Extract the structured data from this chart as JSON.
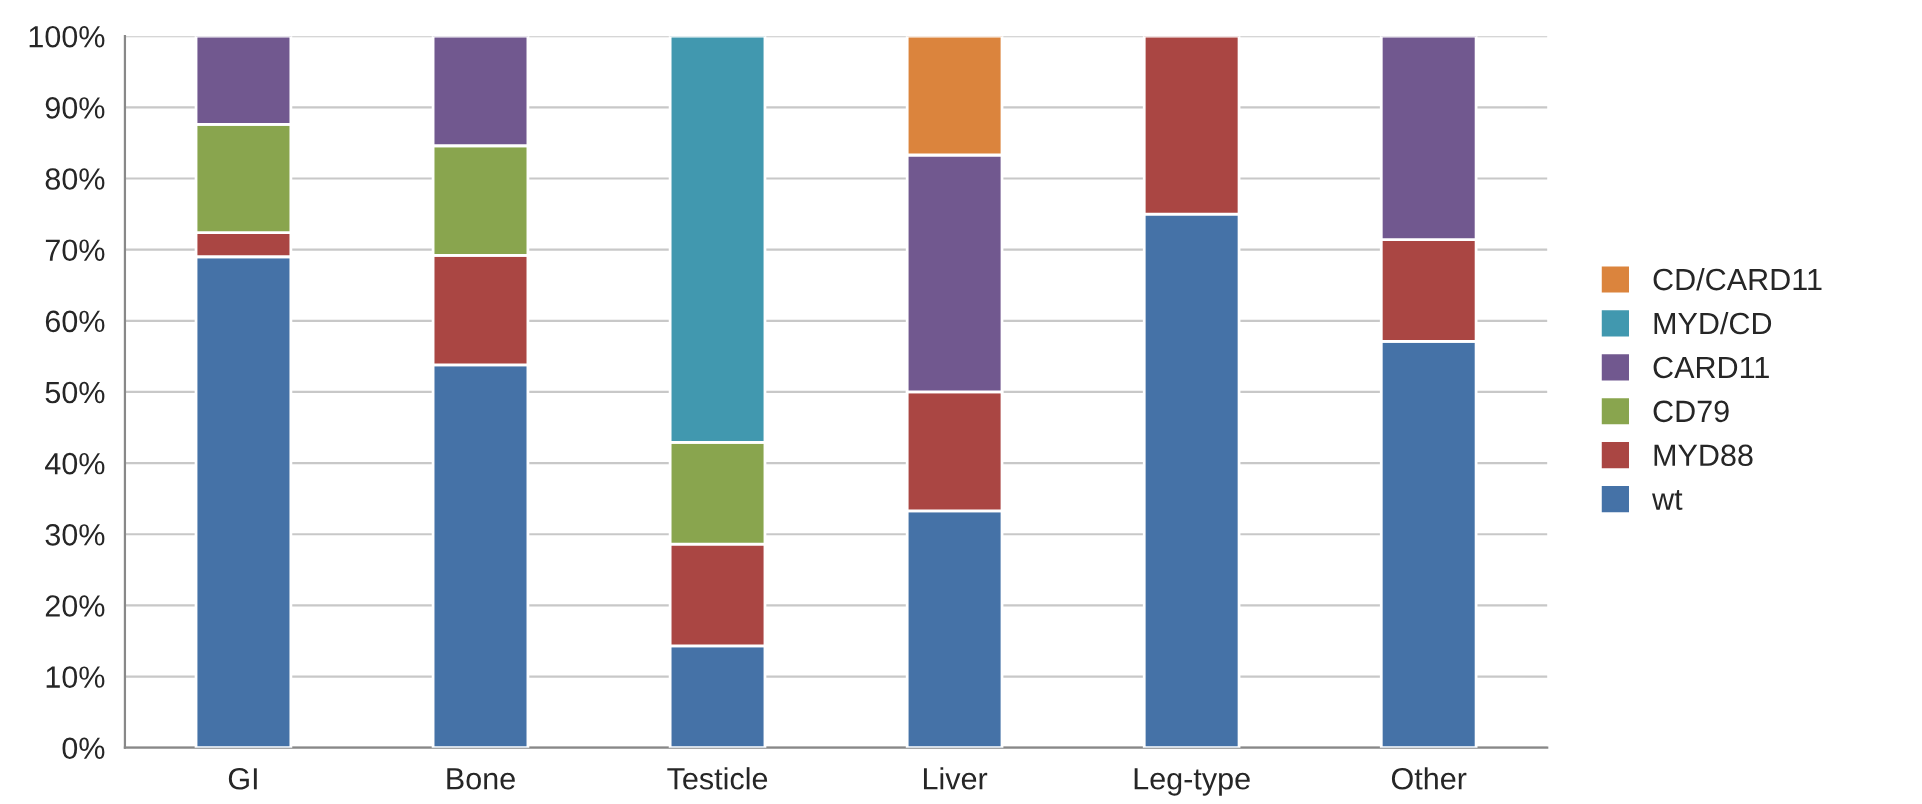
{
  "chart_data": {
    "type": "bar",
    "stacked": true,
    "categories": [
      "GI",
      "Bone",
      "Testicle",
      "Liver",
      "Leg-type",
      "Other"
    ],
    "series": [
      {
        "name": "wt",
        "color": "#4572a7",
        "values": [
          69,
          53.8,
          14.3,
          33.3,
          75,
          57.1
        ]
      },
      {
        "name": "MYD88",
        "color": "#aa4643",
        "values": [
          3.4,
          15.4,
          14.3,
          16.7,
          25,
          14.3
        ]
      },
      {
        "name": "CD79",
        "color": "#89a54e",
        "values": [
          15.2,
          15.4,
          14.3,
          null,
          null,
          null
        ]
      },
      {
        "name": "CARD11",
        "color": "#71588f",
        "values": [
          12.4,
          15.4,
          null,
          33.3,
          null,
          28.6
        ]
      },
      {
        "name": "MYD/CD",
        "color": "#4198af",
        "values": [
          null,
          null,
          57.1,
          null,
          null,
          null
        ]
      },
      {
        "name": "CD/CARD11",
        "color": "#db843d",
        "values": [
          null,
          null,
          null,
          16.7,
          null,
          null
        ]
      }
    ],
    "ylim": [
      0,
      100
    ],
    "yticks": [
      {
        "value": 0,
        "label": "0%"
      },
      {
        "value": 10,
        "label": "10%"
      },
      {
        "value": 20,
        "label": "20%"
      },
      {
        "value": 30,
        "label": "30%"
      },
      {
        "value": 40,
        "label": "40%"
      },
      {
        "value": 50,
        "label": "50%"
      },
      {
        "value": 60,
        "label": "60%"
      },
      {
        "value": 70,
        "label": "70%"
      },
      {
        "value": 80,
        "label": "80%"
      },
      {
        "value": 90,
        "label": "90%"
      },
      {
        "value": 100,
        "label": "100%"
      }
    ],
    "grid": "y",
    "legend": "right"
  }
}
